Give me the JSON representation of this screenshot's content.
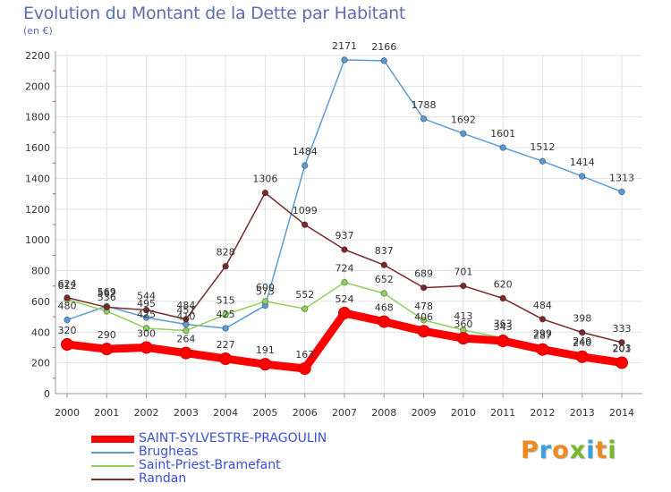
{
  "title": "Evolution du Montant de la Dette par Habitant",
  "subtitle": "(en €)",
  "logo": [
    "P",
    "r",
    "o",
    "x",
    "i",
    "t",
    "i"
  ],
  "logo_colors": [
    "#f08a1e",
    "#3aa0dc",
    "#f08a1e",
    "#7ab82a",
    "#3aa0dc",
    "#f08a1e",
    "#7ab82a"
  ],
  "chart_data": {
    "type": "line",
    "x": [
      "2000",
      "2001",
      "2002",
      "2003",
      "2004",
      "2005",
      "2006",
      "2007",
      "2008",
      "2009",
      "2010",
      "2011",
      "2012",
      "2013",
      "2014"
    ],
    "ylim": [
      0,
      2200
    ],
    "yticks": [
      0,
      200,
      400,
      600,
      800,
      1000,
      1200,
      1400,
      1600,
      1800,
      2000,
      2200
    ],
    "grid": true,
    "legend_position": "bottom-left",
    "series": [
      {
        "name": "Brugheas",
        "color": "#5b9bd5",
        "values": [
          480,
          569,
          495,
          451,
          425,
          573,
          1484,
          2171,
          2166,
          1788,
          1692,
          1601,
          1512,
          1414,
          1313
        ],
        "labels": [
          "480",
          "569",
          "495",
          "451",
          "425",
          "573",
          "1484",
          "2171",
          "2166",
          "1788",
          "1692",
          "1601",
          "1512",
          "1414",
          "1313"
        ]
      },
      {
        "name": "Saint-Priest-Bramefant",
        "color": "#8fd15a",
        "values": [
          612,
          536,
          425,
          410,
          515,
          600,
          552,
          724,
          652,
          478,
          413,
          363,
          299,
          249,
          203
        ],
        "labels": [
          "612",
          "536",
          "425",
          "410",
          "515",
          "600",
          "552",
          "724",
          "652",
          "478",
          "413",
          "363",
          "299",
          "249",
          "203"
        ]
      },
      {
        "name": "Randan",
        "color": "#7a2a2a",
        "values": [
          624,
          562,
          544,
          484,
          828,
          1306,
          1099,
          937,
          837,
          689,
          701,
          620,
          484,
          398,
          333
        ],
        "labels": [
          "624",
          "562",
          "544",
          "484",
          "828",
          "1306",
          "1099",
          "937",
          "837",
          "689",
          "701",
          "620",
          "484",
          "398",
          "333"
        ]
      },
      {
        "name": "SAINT-SYLVESTRE-PRAGOULIN",
        "color": "#ff0000",
        "values": [
          320,
          290,
          300,
          264,
          227,
          191,
          163,
          524,
          468,
          406,
          360,
          343,
          287,
          240,
          201
        ],
        "labels": [
          "320",
          "290",
          "300",
          "264",
          "227",
          "191",
          "163",
          "524",
          "468",
          "406",
          "360",
          "343",
          "287",
          "240",
          "201"
        ]
      }
    ],
    "legend": [
      {
        "name": "SAINT-SYLVESTRE-PRAGOULIN",
        "color": "#ff0000",
        "thick": true
      },
      {
        "name": "Brugheas",
        "color": "#5b9bd5",
        "thick": false
      },
      {
        "name": "Saint-Priest-Bramefant",
        "color": "#8fd15a",
        "thick": false
      },
      {
        "name": "Randan",
        "color": "#7a2a2a",
        "thick": false
      }
    ]
  }
}
